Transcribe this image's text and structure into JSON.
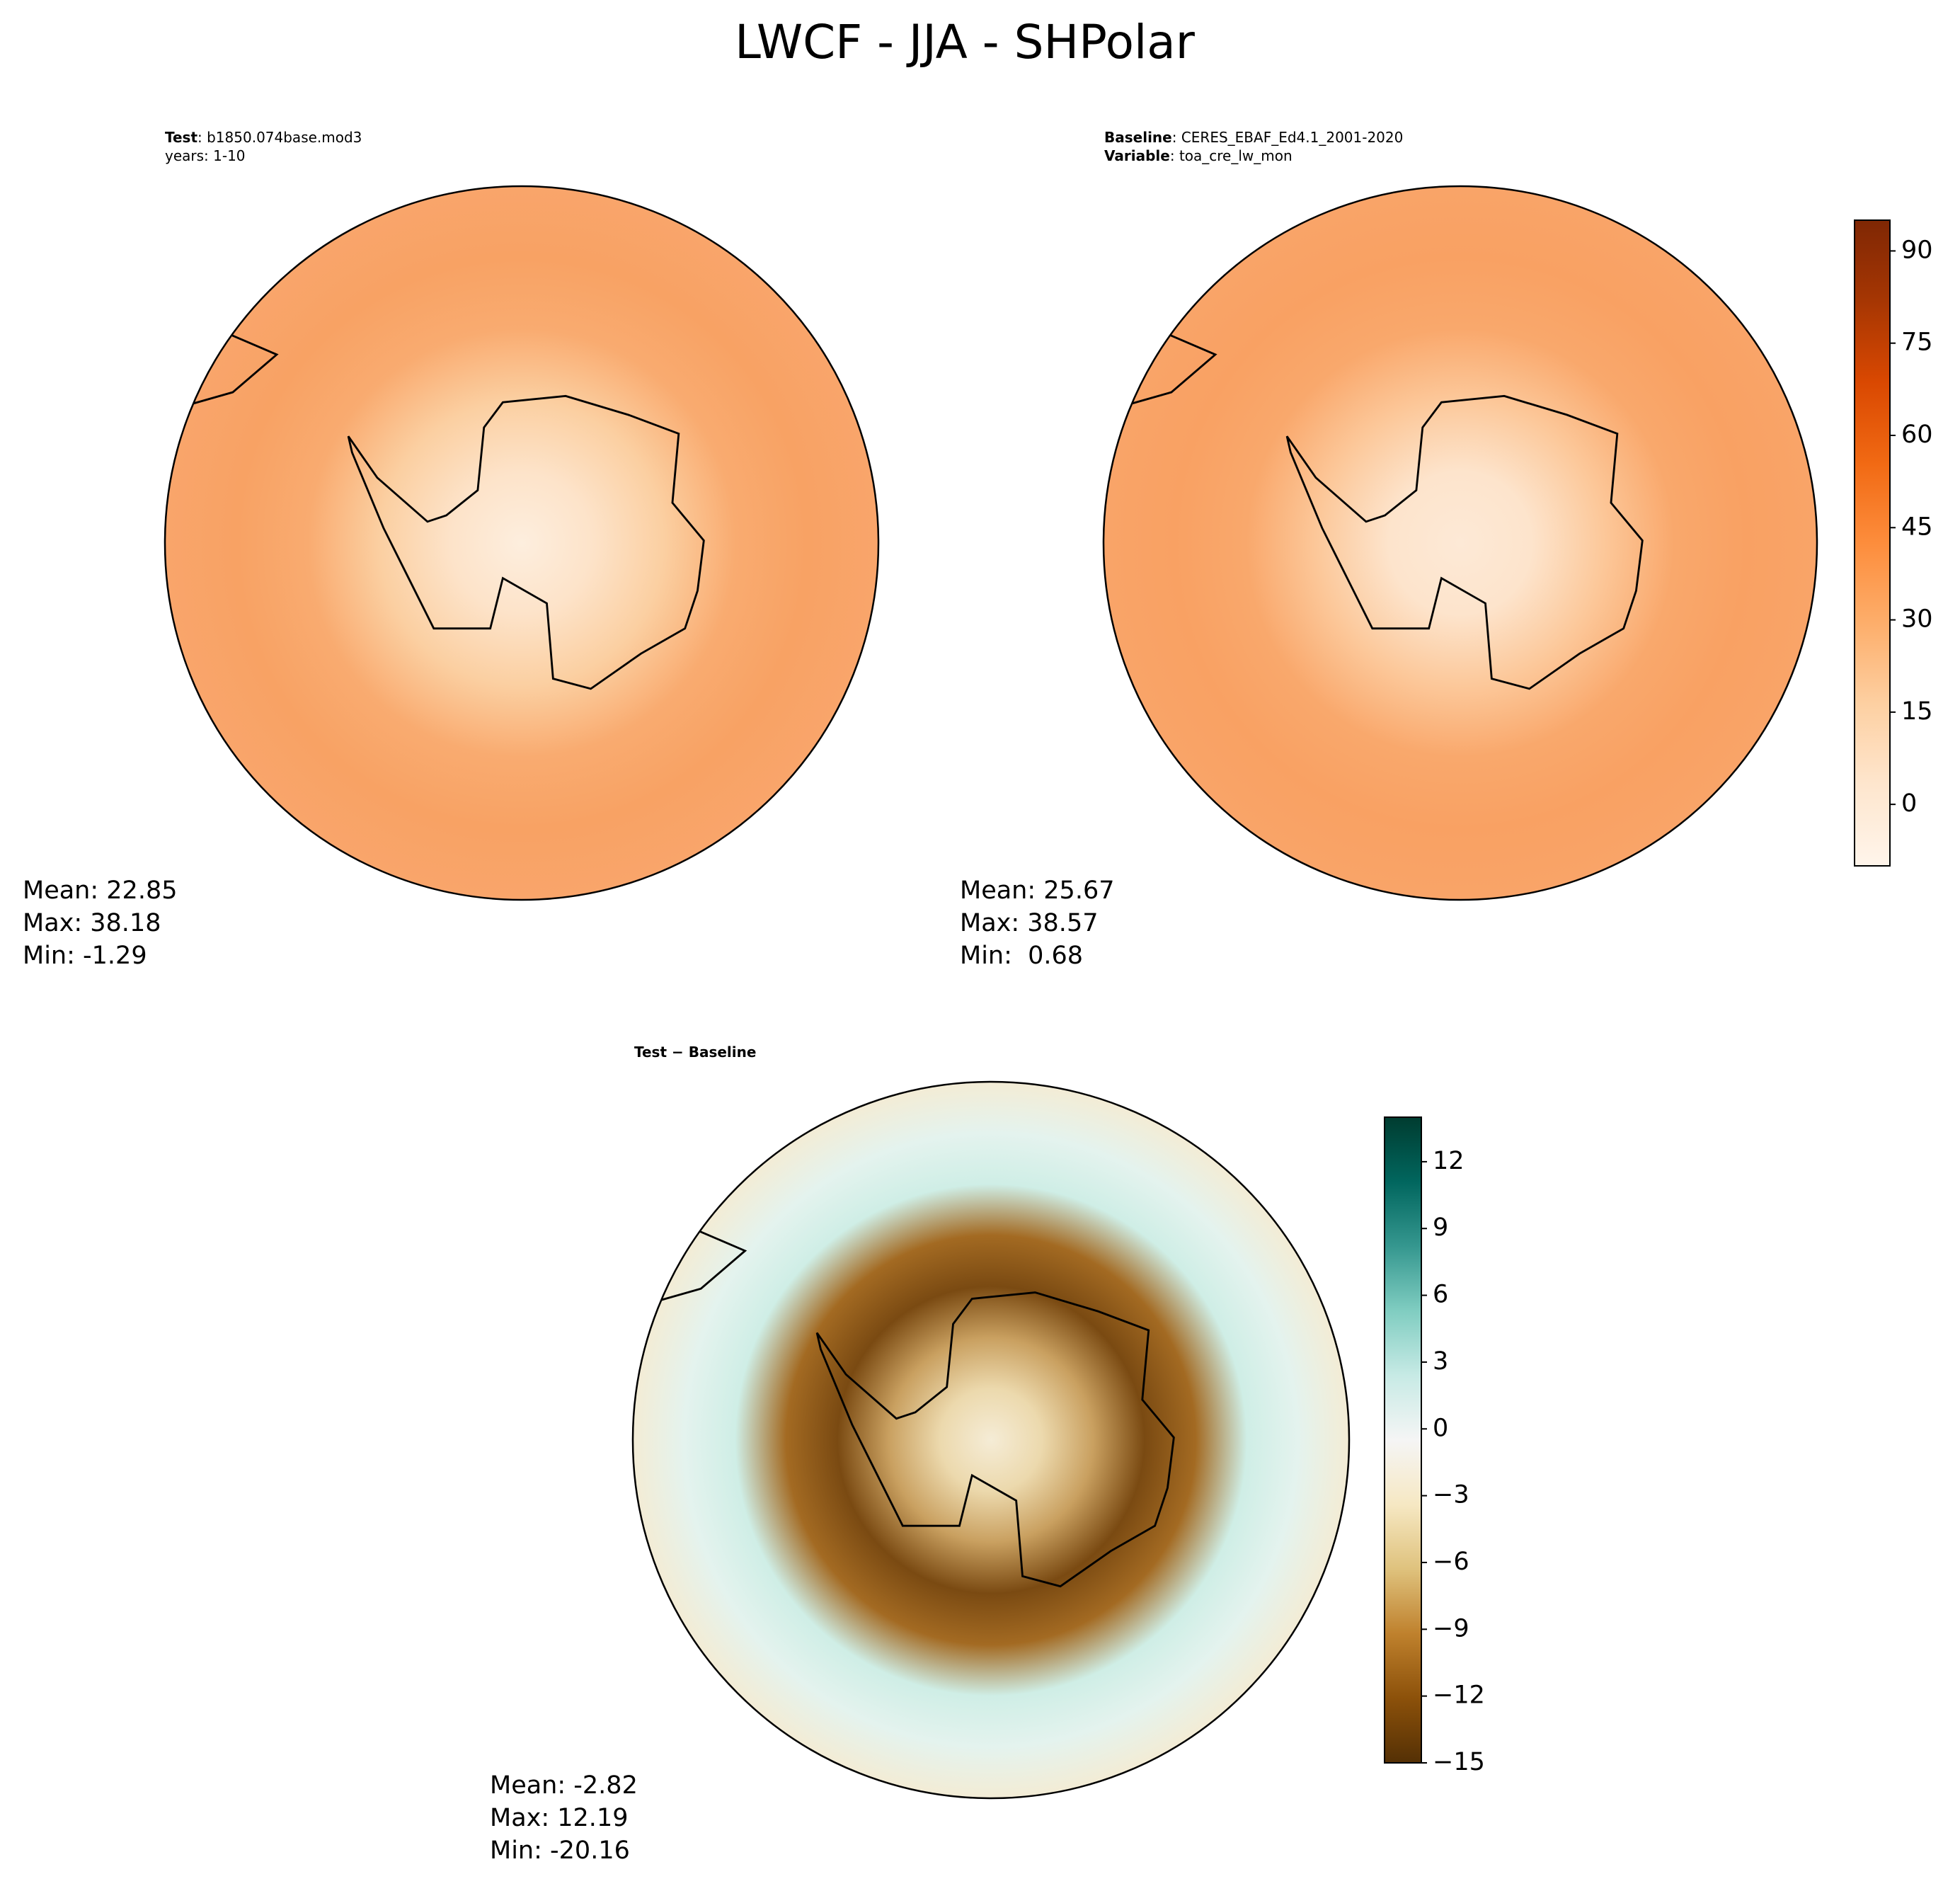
{
  "title": "LWCF - JJA - SHPolar",
  "chart_data": [
    {
      "type": "polar-map",
      "subtitle": [
        {
          "label": "Test",
          "text": ": b1850.074base.mod3"
        },
        {
          "text": "years: 1-10"
        }
      ],
      "stats": [
        "Mean: 22.85",
        "Max: 38.18",
        "Min: -1.29"
      ],
      "fill_colors": [
        "#fdeede",
        "#fde3c9",
        "#fbcfa1",
        "#f9ab70",
        "#f8a264",
        "#f9a56b"
      ]
    },
    {
      "type": "polar-map",
      "subtitle": [
        {
          "label": "Baseline",
          "text": ": CERES_EBAF_Ed4.1_2001-2020"
        },
        {
          "label": "Variable",
          "text": ": toa_cre_lw_mon"
        }
      ],
      "stats": [
        "Mean: 25.67",
        "Max: 38.57",
        "Min:  0.68"
      ],
      "fill_colors": [
        "#fde9d6",
        "#fde4cc",
        "#fcc89a",
        "#f9a86c",
        "#f9a163",
        "#f9a468"
      ],
      "colorbar": {
        "ylim": [
          -10,
          95
        ],
        "yticks": [
          0,
          15,
          30,
          45,
          60,
          75,
          90
        ],
        "colors": [
          "#fff5eb",
          "#fee6ce",
          "#fdd0a2",
          "#fdae6b",
          "#fd8d3c",
          "#f16913",
          "#d94801",
          "#a63603",
          "#7f2704"
        ]
      }
    },
    {
      "type": "polar-map",
      "subtitle": [
        {
          "label": "Test − Baseline"
        }
      ],
      "stats": [
        "Mean: -2.82",
        "Max: 12.19",
        "Min: -20.16"
      ],
      "fill_colors": [
        "#f5ecd6",
        "#ecd9ad",
        "#c9a060",
        "#7a4a12",
        "#a36a22",
        "#cfeee6",
        "#e4f3ee",
        "#f3ecd5"
      ],
      "colorbar": {
        "ylim": [
          -15,
          14
        ],
        "yticks": [
          {
            "value": -15,
            "label": "−15"
          },
          {
            "value": -12,
            "label": "−12"
          },
          {
            "value": -9,
            "label": "−9"
          },
          {
            "value": -6,
            "label": "−6"
          },
          {
            "value": -3,
            "label": "−3"
          },
          0,
          3,
          6,
          9,
          12
        ],
        "colors": [
          "#543005",
          "#8c510a",
          "#bf812d",
          "#dfc27d",
          "#f6e8c3",
          "#f5f5f5",
          "#c7eae5",
          "#80cdc1",
          "#35978f",
          "#01665e",
          "#003c30"
        ]
      }
    }
  ]
}
